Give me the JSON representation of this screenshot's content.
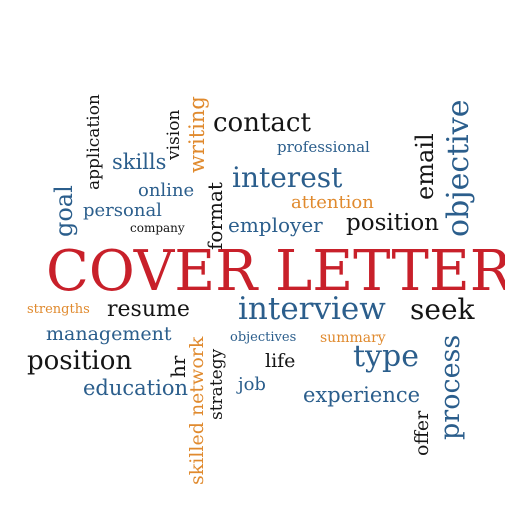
{
  "palette": {
    "red": "#c8202a",
    "blue": "#2b5e8c",
    "black": "#151515",
    "orange": "#e08a2e"
  },
  "words": {
    "main": "COVER LETTER",
    "application": "application",
    "vision": "vision",
    "writing": "writing",
    "contact": "contact",
    "professional": "professional",
    "email": "email",
    "objective": "objective",
    "skills": "skills",
    "goal": "goal",
    "online": "online",
    "personal": "personal",
    "company": "company",
    "format": "format",
    "interest": "interest",
    "attention": "attention",
    "employer": "employer",
    "position_top": "position",
    "strengths": "strengths",
    "resume": "resume",
    "interview": "interview",
    "seek": "seek",
    "management": "management",
    "objectives": "objectives",
    "summary": "summary",
    "position_bottom": "position",
    "hr": "hr",
    "life": "life",
    "type": "type",
    "education": "education",
    "skilled_network": "skilled network",
    "strategy": "strategy",
    "job": "job",
    "experience": "experience",
    "offer": "offer",
    "process": "process"
  }
}
